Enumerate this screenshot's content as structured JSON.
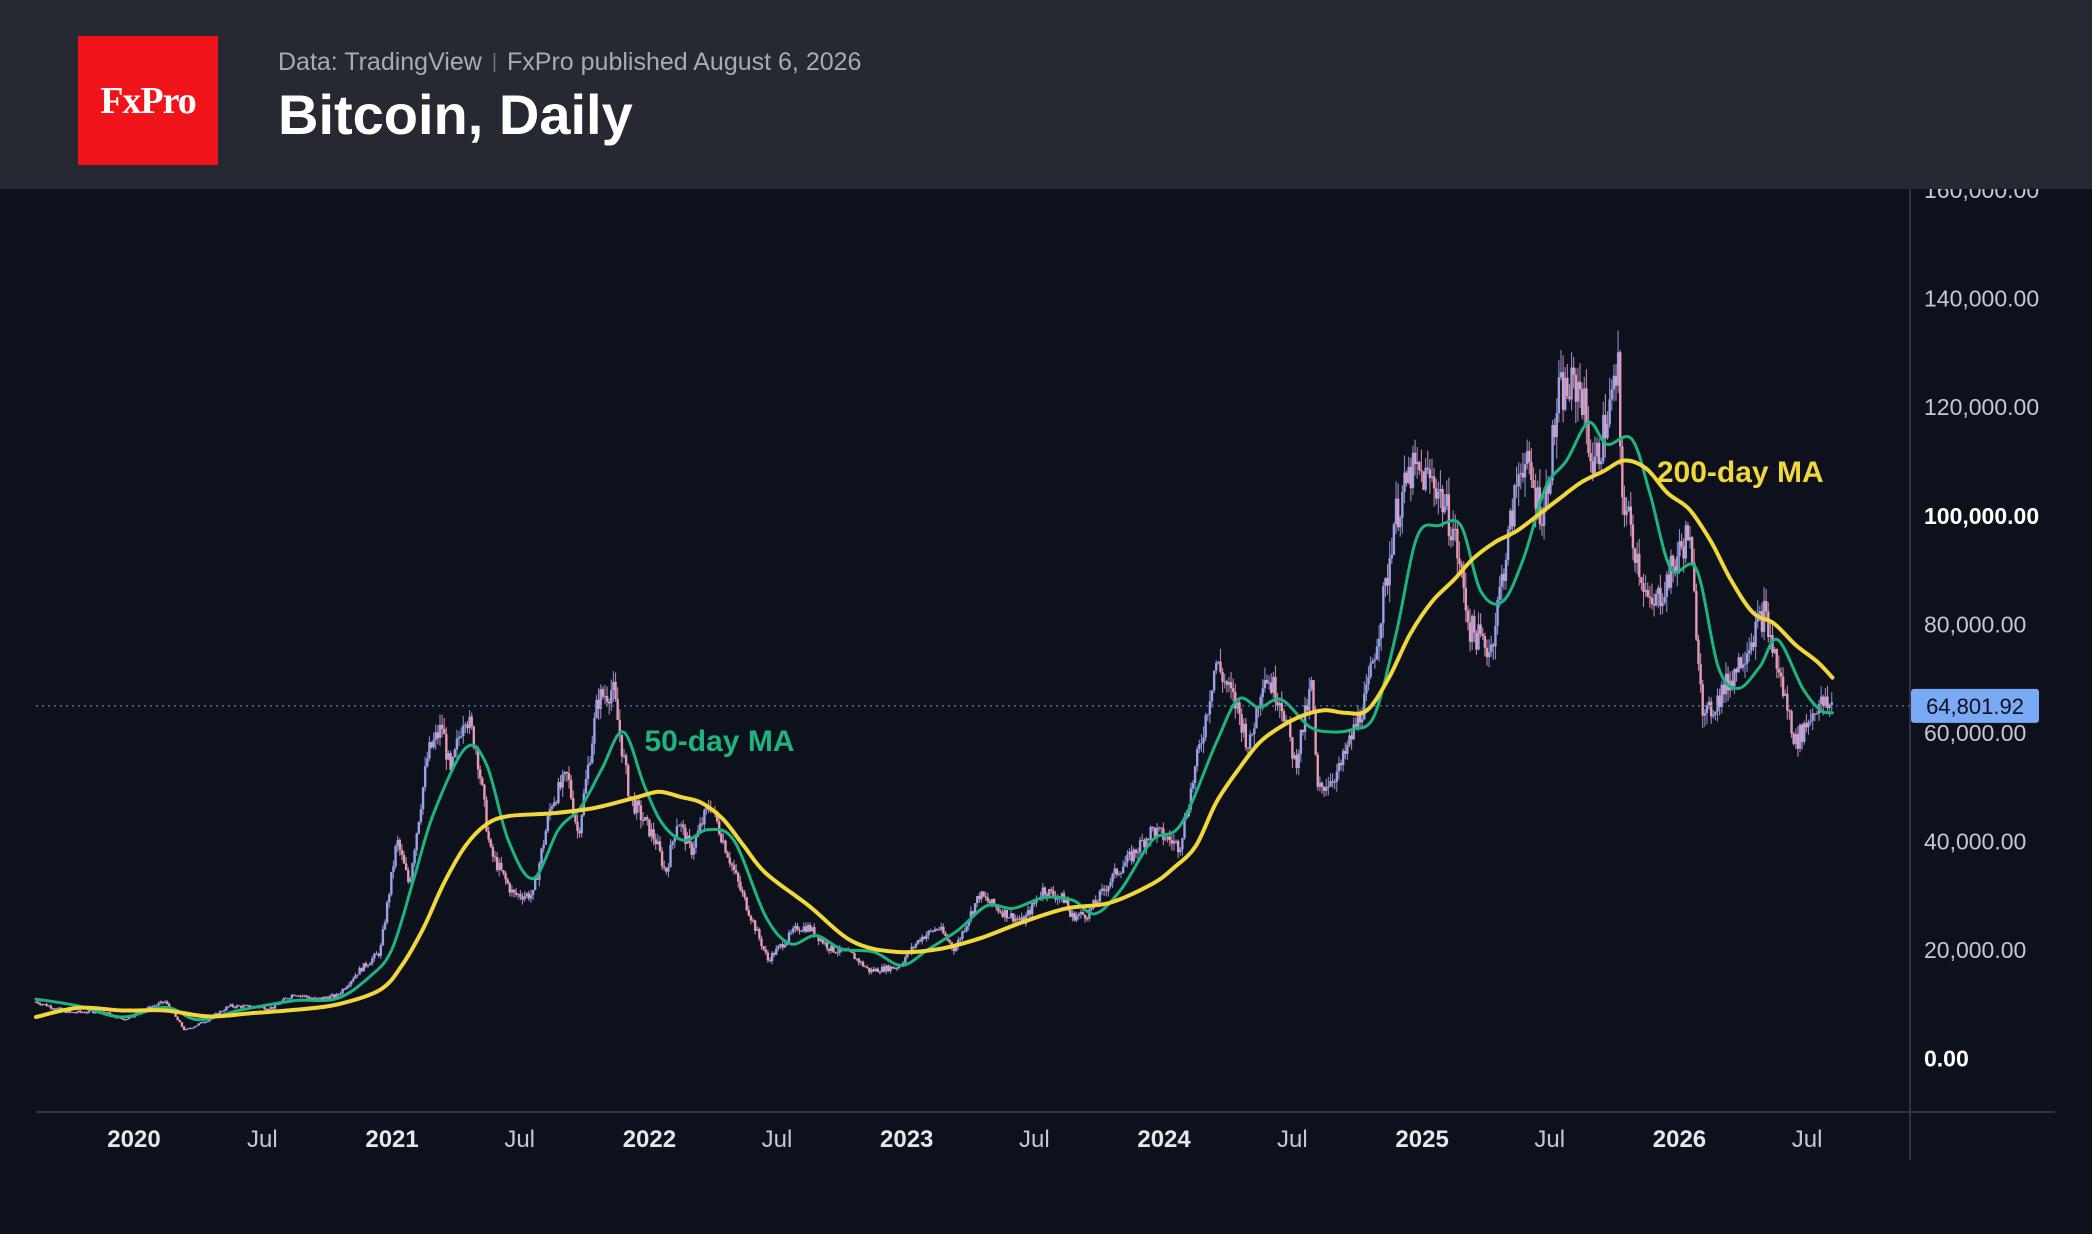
{
  "header": {
    "logo_text": "FxPro",
    "source": "Data: TradingView",
    "published": "FxPro published August 6, 2026",
    "title": "Bitcoin, Daily"
  },
  "chart_data": {
    "type": "line",
    "title": "Bitcoin, Daily",
    "xlabel": "",
    "ylabel": "",
    "ylim": [
      -10000,
      160000
    ],
    "y_ticks": [
      "160,000.00",
      "140,000.00",
      "120,000.00",
      "100,000.00",
      "80,000.00",
      "60,000.00",
      "40,000.00",
      "20,000.00",
      "0.00"
    ],
    "y_tick_values": [
      160000,
      140000,
      120000,
      100000,
      80000,
      60000,
      40000,
      20000,
      0
    ],
    "bold_y_ticks": [
      "100,000.00",
      "0.00"
    ],
    "x_range": [
      "2019-08-15",
      "2026-11-24"
    ],
    "x_ticks": [
      {
        "label": "2020",
        "date": "2020-01-01",
        "bold": true
      },
      {
        "label": "Jul",
        "date": "2020-07-01",
        "bold": false
      },
      {
        "label": "2021",
        "date": "2021-01-01",
        "bold": true
      },
      {
        "label": "Jul",
        "date": "2021-07-01",
        "bold": false
      },
      {
        "label": "2022",
        "date": "2022-01-01",
        "bold": true
      },
      {
        "label": "Jul",
        "date": "2022-07-01",
        "bold": false
      },
      {
        "label": "2023",
        "date": "2023-01-01",
        "bold": true
      },
      {
        "label": "Jul",
        "date": "2023-07-01",
        "bold": false
      },
      {
        "label": "2024",
        "date": "2024-01-01",
        "bold": true
      },
      {
        "label": "Jul",
        "date": "2024-07-01",
        "bold": false
      },
      {
        "label": "2025",
        "date": "2025-01-01",
        "bold": true
      },
      {
        "label": "Jul",
        "date": "2025-07-01",
        "bold": false
      },
      {
        "label": "2026",
        "date": "2026-01-01",
        "bold": true
      },
      {
        "label": "Jul",
        "date": "2026-07-01",
        "bold": false
      }
    ],
    "last_price": 64801.92,
    "last_price_label": "64,801.92",
    "grid": false,
    "legend": "none",
    "series": [
      {
        "name": "Bitcoin",
        "style": "candles",
        "color": "#b79ad0",
        "points": [
          [
            "2019-08-15",
            10300
          ],
          [
            "2019-10-01",
            8300
          ],
          [
            "2019-11-15",
            8600
          ],
          [
            "2019-12-17",
            7000
          ],
          [
            "2020-01-15",
            8800
          ],
          [
            "2020-02-14",
            10300
          ],
          [
            "2020-03-13",
            5000
          ],
          [
            "2020-04-15",
            7000
          ],
          [
            "2020-05-15",
            9500
          ],
          [
            "2020-06-15",
            9400
          ],
          [
            "2020-07-15",
            9200
          ],
          [
            "2020-08-15",
            11800
          ],
          [
            "2020-09-15",
            10800
          ],
          [
            "2020-10-15",
            11400
          ],
          [
            "2020-11-15",
            16000
          ],
          [
            "2020-12-15",
            19500
          ],
          [
            "2021-01-08",
            40000
          ],
          [
            "2021-01-25",
            32000
          ],
          [
            "2021-02-21",
            56000
          ],
          [
            "2021-03-13",
            61000
          ],
          [
            "2021-03-25",
            52000
          ],
          [
            "2021-04-14",
            64000
          ],
          [
            "2021-05-01",
            57000
          ],
          [
            "2021-05-20",
            38000
          ],
          [
            "2021-06-22",
            30000
          ],
          [
            "2021-07-20",
            30000
          ],
          [
            "2021-08-15",
            47000
          ],
          [
            "2021-09-07",
            52000
          ],
          [
            "2021-09-22",
            41000
          ],
          [
            "2021-10-20",
            66000
          ],
          [
            "2021-11-10",
            68000
          ],
          [
            "2021-12-04",
            48000
          ],
          [
            "2022-01-10",
            40000
          ],
          [
            "2022-01-24",
            34000
          ],
          [
            "2022-02-10",
            44000
          ],
          [
            "2022-03-01",
            38000
          ],
          [
            "2022-03-28",
            47000
          ],
          [
            "2022-05-10",
            31000
          ],
          [
            "2022-06-18",
            18000
          ],
          [
            "2022-07-30",
            24000
          ],
          [
            "2022-08-15",
            24000
          ],
          [
            "2022-09-15",
            20000
          ],
          [
            "2022-10-15",
            19000
          ],
          [
            "2022-11-09",
            16000
          ],
          [
            "2022-12-20",
            16800
          ],
          [
            "2023-01-20",
            22000
          ],
          [
            "2023-02-15",
            24000
          ],
          [
            "2023-03-10",
            20000
          ],
          [
            "2023-04-14",
            30000
          ],
          [
            "2023-05-15",
            27000
          ],
          [
            "2023-06-15",
            25000
          ],
          [
            "2023-07-13",
            31000
          ],
          [
            "2023-08-15",
            29000
          ],
          [
            "2023-08-20",
            26000
          ],
          [
            "2023-09-15",
            26500
          ],
          [
            "2023-10-24",
            34000
          ],
          [
            "2023-11-15",
            37000
          ],
          [
            "2023-12-15",
            42000
          ],
          [
            "2024-01-23",
            39000
          ],
          [
            "2024-02-28",
            62000
          ],
          [
            "2024-03-14",
            73000
          ],
          [
            "2024-04-15",
            64000
          ],
          [
            "2024-05-01",
            57000
          ],
          [
            "2024-05-21",
            71000
          ],
          [
            "2024-06-15",
            66000
          ],
          [
            "2024-07-05",
            54000
          ],
          [
            "2024-07-29",
            69000
          ],
          [
            "2024-08-05",
            49000
          ],
          [
            "2024-09-06",
            53000
          ],
          [
            "2024-10-15",
            67000
          ],
          [
            "2024-11-12",
            88000
          ],
          [
            "2024-11-22",
            99000
          ],
          [
            "2024-12-17",
            108000
          ],
          [
            "2025-01-20",
            106000
          ],
          [
            "2025-02-15",
            97000
          ],
          [
            "2025-03-10",
            79000
          ],
          [
            "2025-04-08",
            75000
          ],
          [
            "2025-05-22",
            111000
          ],
          [
            "2025-06-22",
            100000
          ],
          [
            "2025-07-14",
            122000
          ],
          [
            "2025-08-14",
            124000
          ],
          [
            "2025-09-01",
            108000
          ],
          [
            "2025-10-06",
            126000
          ],
          [
            "2025-10-10",
            105000
          ],
          [
            "2025-11-21",
            82000
          ],
          [
            "2025-12-15",
            88000
          ],
          [
            "2026-01-14",
            97000
          ],
          [
            "2026-02-05",
            62000
          ],
          [
            "2026-03-15",
            70000
          ],
          [
            "2026-04-15",
            78000
          ],
          [
            "2026-05-01",
            82000
          ],
          [
            "2026-06-15",
            58000
          ],
          [
            "2026-07-15",
            65000
          ],
          [
            "2026-08-06",
            64800
          ]
        ]
      },
      {
        "name": "50-day MA",
        "color": "#1fb37e",
        "label_date": "2021-12-25",
        "label_value": 56500,
        "points": [
          [
            "2019-08-15",
            10800
          ],
          [
            "2019-10-15",
            9500
          ],
          [
            "2019-12-15",
            7500
          ],
          [
            "2020-02-15",
            9300
          ],
          [
            "2020-04-01",
            7000
          ],
          [
            "2020-06-01",
            8800
          ],
          [
            "2020-08-15",
            10500
          ],
          [
            "2020-10-15",
            10900
          ],
          [
            "2020-12-01",
            15000
          ],
          [
            "2021-01-01",
            20000
          ],
          [
            "2021-02-01",
            33000
          ],
          [
            "2021-03-01",
            45000
          ],
          [
            "2021-04-15",
            57000
          ],
          [
            "2021-05-15",
            54000
          ],
          [
            "2021-06-15",
            40000
          ],
          [
            "2021-07-20",
            33000
          ],
          [
            "2021-08-25",
            42000
          ],
          [
            "2021-09-25",
            46000
          ],
          [
            "2021-10-25",
            53000
          ],
          [
            "2021-11-25",
            60000
          ],
          [
            "2021-12-25",
            50000
          ],
          [
            "2022-01-20",
            43000
          ],
          [
            "2022-02-20",
            40000
          ],
          [
            "2022-03-25",
            42000
          ],
          [
            "2022-05-01",
            40000
          ],
          [
            "2022-06-15",
            26000
          ],
          [
            "2022-07-20",
            21000
          ],
          [
            "2022-08-25",
            22500
          ],
          [
            "2022-10-01",
            20000
          ],
          [
            "2022-11-15",
            19500
          ],
          [
            "2022-12-25",
            17000
          ],
          [
            "2023-02-01",
            20000
          ],
          [
            "2023-03-15",
            23500
          ],
          [
            "2023-04-25",
            28000
          ],
          [
            "2023-06-01",
            27500
          ],
          [
            "2023-07-15",
            29500
          ],
          [
            "2023-08-25",
            29000
          ],
          [
            "2023-09-25",
            26500
          ],
          [
            "2023-11-01",
            31000
          ],
          [
            "2023-12-15",
            40000
          ],
          [
            "2024-01-25",
            43000
          ],
          [
            "2024-03-15",
            58000
          ],
          [
            "2024-04-15",
            66000
          ],
          [
            "2024-05-15",
            64500
          ],
          [
            "2024-06-15",
            66000
          ],
          [
            "2024-07-25",
            61000
          ],
          [
            "2024-08-25",
            60000
          ],
          [
            "2024-09-25",
            60500
          ],
          [
            "2024-10-25",
            63000
          ],
          [
            "2024-11-25",
            78000
          ],
          [
            "2024-12-25",
            96000
          ],
          [
            "2025-01-25",
            98000
          ],
          [
            "2025-02-25",
            98000
          ],
          [
            "2025-03-25",
            86000
          ],
          [
            "2025-04-25",
            84000
          ],
          [
            "2025-05-25",
            92000
          ],
          [
            "2025-06-25",
            105000
          ],
          [
            "2025-07-25",
            110000
          ],
          [
            "2025-08-25",
            117000
          ],
          [
            "2025-09-20",
            113000
          ],
          [
            "2025-10-25",
            114000
          ],
          [
            "2025-11-20",
            104000
          ],
          [
            "2025-12-20",
            90000
          ],
          [
            "2026-01-25",
            90000
          ],
          [
            "2026-02-25",
            72000
          ],
          [
            "2026-03-25",
            68000
          ],
          [
            "2026-04-25",
            72000
          ],
          [
            "2026-05-20",
            77000
          ],
          [
            "2026-06-25",
            68000
          ],
          [
            "2026-07-20",
            64000
          ],
          [
            "2026-08-06",
            63500
          ]
        ]
      },
      {
        "name": "200-day MA",
        "color": "#f2d73c",
        "label_date": "2025-11-30",
        "label_value": 106000,
        "points": [
          [
            "2019-08-15",
            7500
          ],
          [
            "2019-10-15",
            9200
          ],
          [
            "2019-12-15",
            8700
          ],
          [
            "2020-02-15",
            8700
          ],
          [
            "2020-04-15",
            7600
          ],
          [
            "2020-06-15",
            8200
          ],
          [
            "2020-08-15",
            8800
          ],
          [
            "2020-10-15",
            9800
          ],
          [
            "2020-12-15",
            12500
          ],
          [
            "2021-01-15",
            17000
          ],
          [
            "2021-02-15",
            24000
          ],
          [
            "2021-03-15",
            32000
          ],
          [
            "2021-04-15",
            39000
          ],
          [
            "2021-05-15",
            43000
          ],
          [
            "2021-06-15",
            44500
          ],
          [
            "2021-08-15",
            45000
          ],
          [
            "2021-10-15",
            46000
          ],
          [
            "2021-12-15",
            48000
          ],
          [
            "2022-01-15",
            49000
          ],
          [
            "2022-02-15",
            48000
          ],
          [
            "2022-03-15",
            47000
          ],
          [
            "2022-04-15",
            44000
          ],
          [
            "2022-05-15",
            39000
          ],
          [
            "2022-06-15",
            34000
          ],
          [
            "2022-08-15",
            28000
          ],
          [
            "2022-10-15",
            21500
          ],
          [
            "2022-12-15",
            19500
          ],
          [
            "2023-02-15",
            20000
          ],
          [
            "2023-04-15",
            22000
          ],
          [
            "2023-06-15",
            25000
          ],
          [
            "2023-08-15",
            27500
          ],
          [
            "2023-10-15",
            28500
          ],
          [
            "2023-12-15",
            32000
          ],
          [
            "2024-01-15",
            35000
          ],
          [
            "2024-02-15",
            39000
          ],
          [
            "2024-03-15",
            47000
          ],
          [
            "2024-04-15",
            53000
          ],
          [
            "2024-05-15",
            58000
          ],
          [
            "2024-06-15",
            61000
          ],
          [
            "2024-07-15",
            63000
          ],
          [
            "2024-08-15",
            64000
          ],
          [
            "2024-09-15",
            63500
          ],
          [
            "2024-10-15",
            64000
          ],
          [
            "2024-11-15",
            70000
          ],
          [
            "2024-12-15",
            78000
          ],
          [
            "2025-01-15",
            84000
          ],
          [
            "2025-02-15",
            88000
          ],
          [
            "2025-03-15",
            92000
          ],
          [
            "2025-04-15",
            95000
          ],
          [
            "2025-05-15",
            97000
          ],
          [
            "2025-06-15",
            100000
          ],
          [
            "2025-07-15",
            103000
          ],
          [
            "2025-08-15",
            106000
          ],
          [
            "2025-09-15",
            108000
          ],
          [
            "2025-10-15",
            110000
          ],
          [
            "2025-11-15",
            108500
          ],
          [
            "2025-12-15",
            104000
          ],
          [
            "2026-01-15",
            101000
          ],
          [
            "2026-02-15",
            95000
          ],
          [
            "2026-03-15",
            88000
          ],
          [
            "2026-04-15",
            82000
          ],
          [
            "2026-05-15",
            80000
          ],
          [
            "2026-06-15",
            76000
          ],
          [
            "2026-07-15",
            73000
          ],
          [
            "2026-08-06",
            70000
          ]
        ]
      }
    ]
  }
}
